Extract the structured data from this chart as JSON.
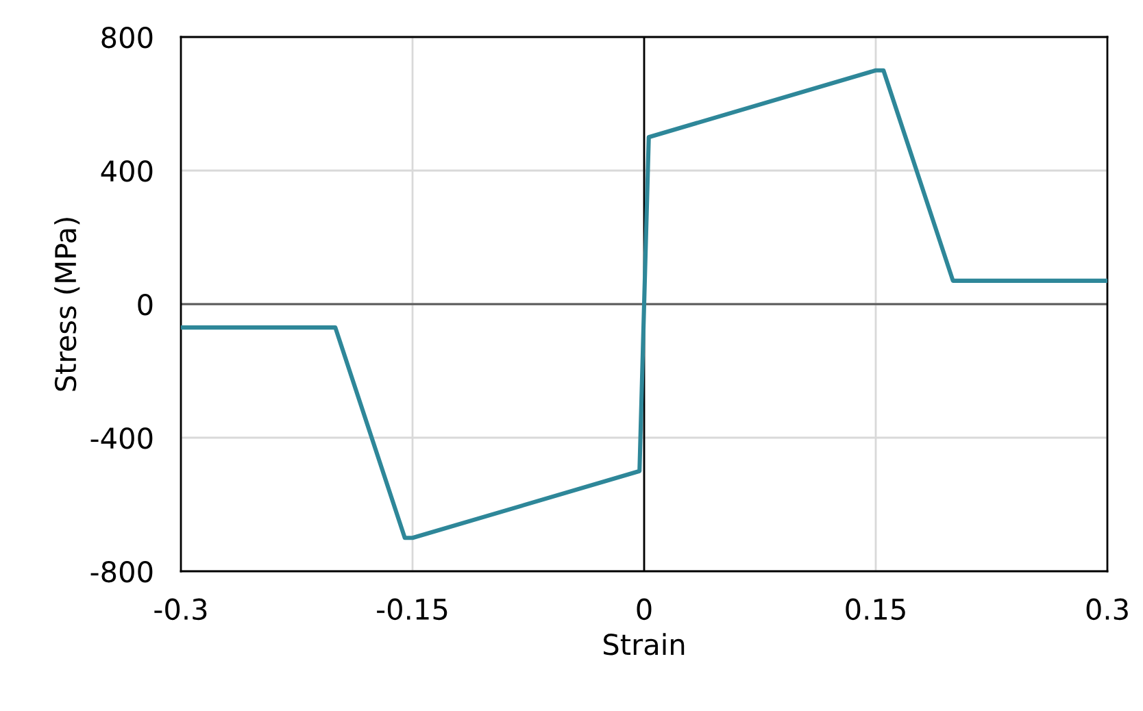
{
  "chart_data": {
    "type": "line",
    "xlabel": "Strain",
    "ylabel": "Stress (MPa)",
    "x": [
      -0.3,
      -0.2,
      -0.155,
      -0.15,
      -0.003,
      0.003,
      0.15,
      0.155,
      0.2,
      0.3
    ],
    "series": [
      {
        "color": "#2e8799",
        "values": [
          -70,
          -70,
          -700,
          -700,
          -500,
          500,
          700,
          700,
          70,
          70
        ]
      }
    ],
    "xlim": [
      -0.3,
      0.3
    ],
    "xticks": [
      -0.3,
      -0.15,
      0,
      0.15,
      0.3
    ],
    "ylim": [
      -800,
      800
    ],
    "yticks": [
      -800,
      -400,
      0,
      400,
      800
    ],
    "grid": true,
    "marker": "none",
    "line_style": "solid",
    "ref_lines": [
      {
        "axis": "x",
        "value": 0,
        "color": "#000000"
      },
      {
        "axis": "y",
        "value": 0,
        "color": "#595959"
      }
    ]
  }
}
